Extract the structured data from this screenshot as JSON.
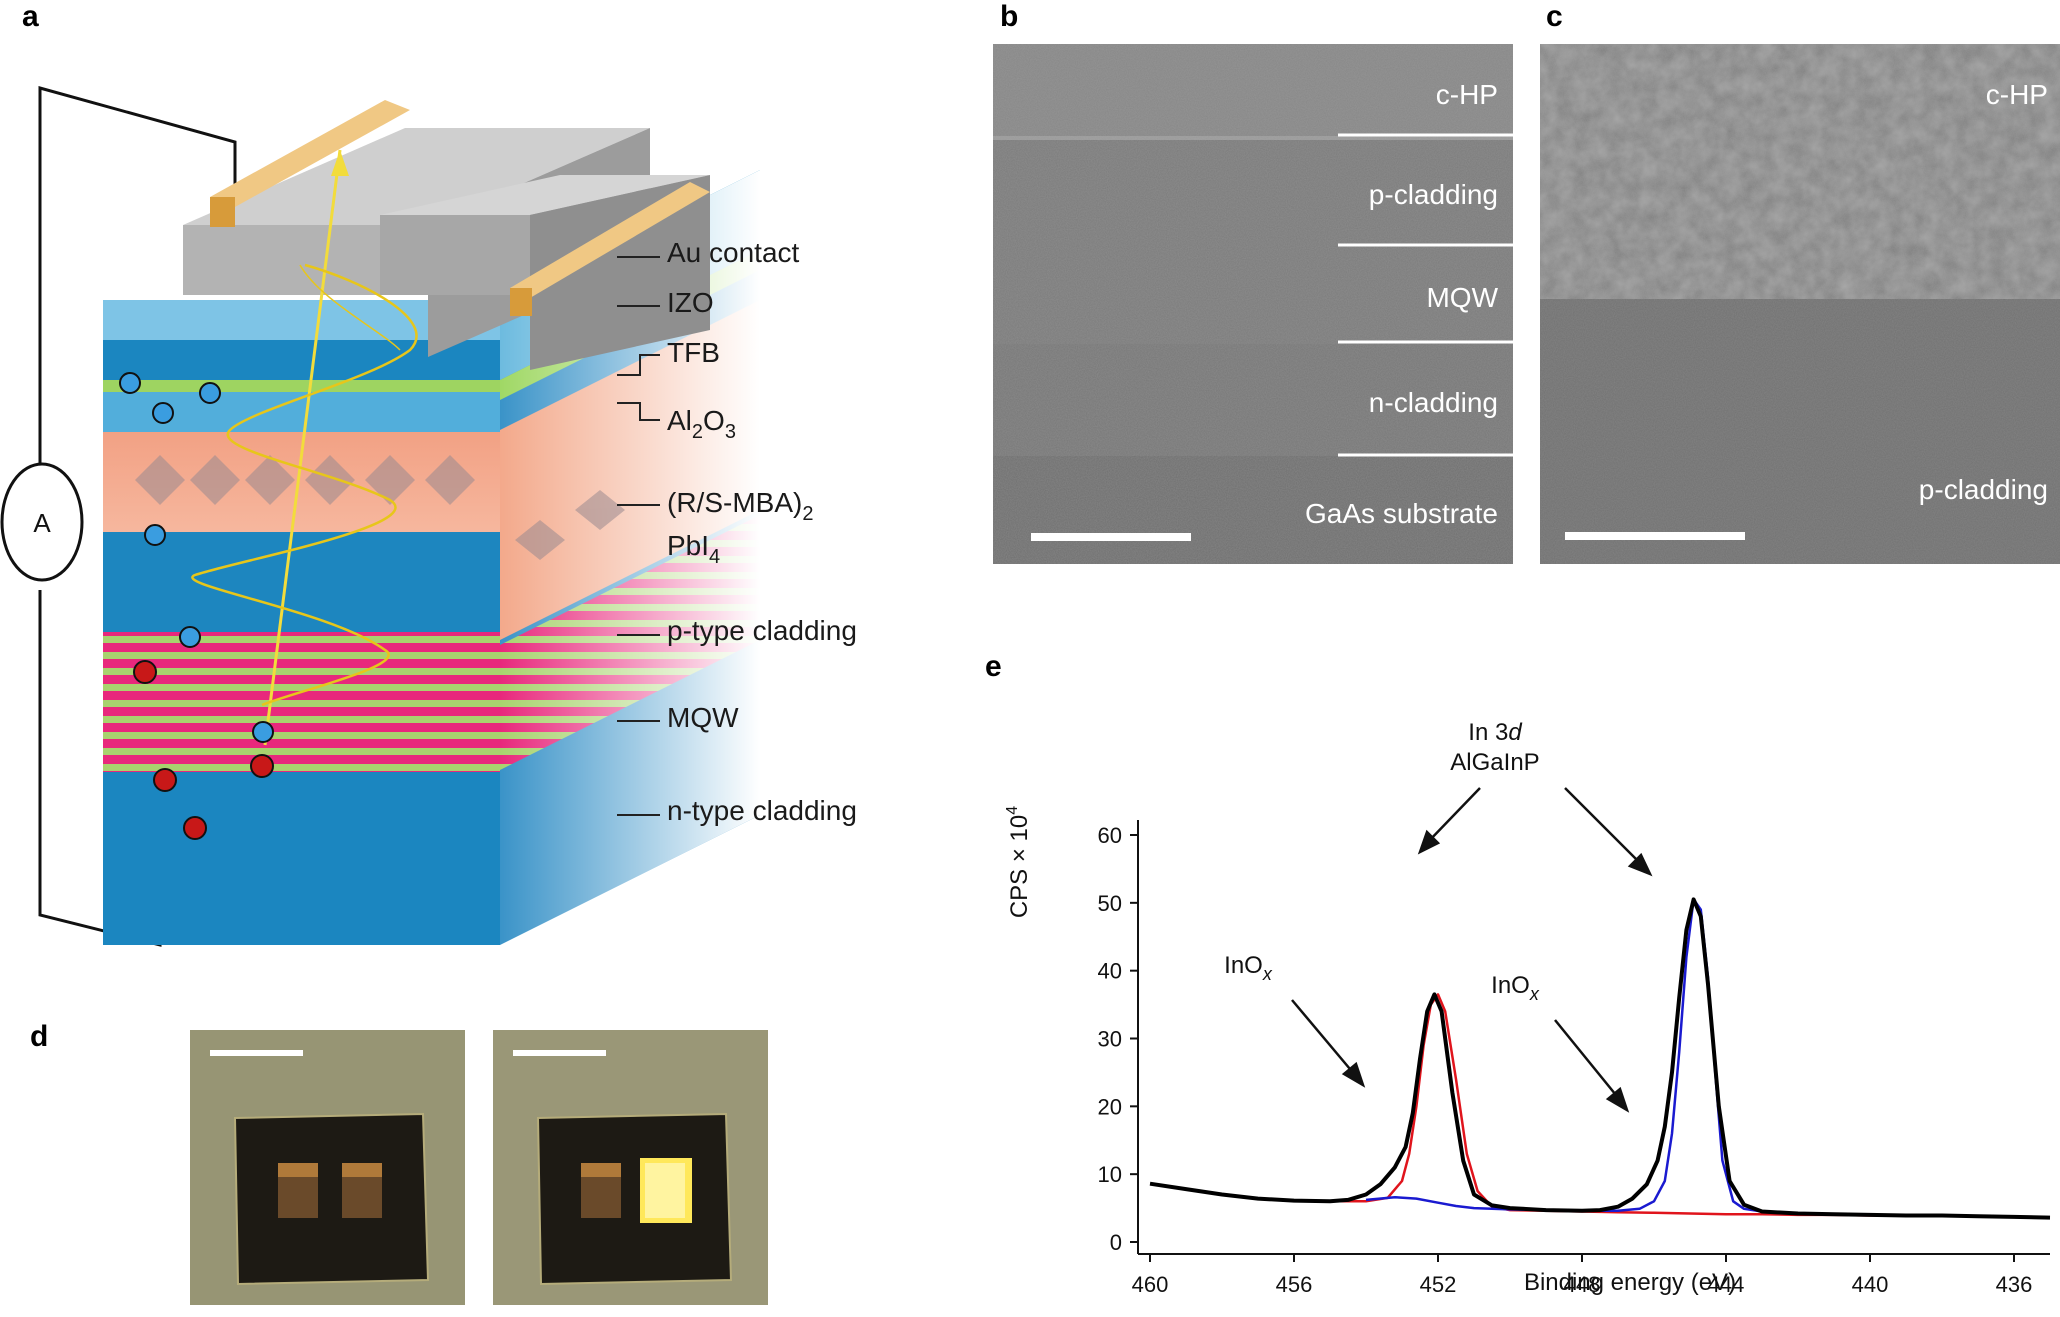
{
  "panels": {
    "a": "a",
    "b": "b",
    "c": "c",
    "d": "d",
    "e": "e"
  },
  "panel_a": {
    "ammeter": "A",
    "layers": [
      {
        "main": "Au contact"
      },
      {
        "main": "IZO"
      },
      {
        "main": "TFB"
      },
      {
        "main": "Al",
        "sub1": "2",
        "mid": "O",
        "sub2": "3"
      },
      {
        "main": "(R/S-MBA)",
        "sub1": "2"
      },
      {
        "main": "PbI",
        "sub1": "4"
      },
      {
        "main": "p-type cladding"
      },
      {
        "main": "MQW"
      },
      {
        "main": "n-type cladding"
      }
    ]
  },
  "panel_b": {
    "labels": [
      "c-HP",
      "p-cladding",
      "MQW",
      "n-cladding",
      "GaAs substrate"
    ]
  },
  "panel_c": {
    "labels": [
      "c-HP",
      "p-cladding"
    ]
  },
  "colors": {
    "red_fit": "#e0141c",
    "blue_fit": "#1a1ad0",
    "black_data": "#000000",
    "au": "#e3b157",
    "cladding": "#1b86c0"
  },
  "chart_data": {
    "type": "line",
    "title": "",
    "xlabel": "Binding energy (eV)",
    "ylabel": "CPS × 10",
    "ylabel_sup": "4",
    "xlim": [
      460,
      435
    ],
    "ylim": [
      0,
      60
    ],
    "xticks": [
      460,
      456,
      452,
      448,
      444,
      440,
      436
    ],
    "yticks": [
      0,
      10,
      20,
      30,
      40,
      50,
      60
    ],
    "annotations": {
      "in3d_line1": "In 3",
      "in3d_italic": "d",
      "in3d_line2": "AlGaInP",
      "inox_main": "InO",
      "inox_sub": "x"
    },
    "series": [
      {
        "name": "data",
        "color": "#000000",
        "x": [
          460,
          459,
          458,
          457,
          456,
          455,
          454.5,
          454,
          453.6,
          453.2,
          452.9,
          452.7,
          452.5,
          452.3,
          452.1,
          451.9,
          451.6,
          451.3,
          451,
          450.5,
          450,
          449,
          448,
          447.5,
          447,
          446.6,
          446.2,
          445.9,
          445.7,
          445.5,
          445.3,
          445.1,
          444.9,
          444.7,
          444.5,
          444.2,
          443.9,
          443.5,
          443,
          442,
          441,
          440,
          439,
          438,
          437,
          436,
          435
        ],
        "y": [
          8.6,
          7.8,
          7.0,
          6.4,
          6.1,
          6.0,
          6.2,
          7.0,
          8.5,
          11,
          14,
          19,
          27,
          34,
          36.5,
          34,
          22,
          12,
          7,
          5.4,
          5.0,
          4.7,
          4.6,
          4.7,
          5.2,
          6.4,
          8.5,
          12,
          17,
          25,
          36,
          46,
          50.5,
          48,
          38,
          20,
          9,
          5.5,
          4.5,
          4.2,
          4.1,
          4.0,
          3.9,
          3.9,
          3.8,
          3.7,
          3.6
        ]
      },
      {
        "name": "AlGaInP fit (red)",
        "color": "#e0141c",
        "x": [
          456,
          455,
          454,
          453.4,
          453,
          452.8,
          452.6,
          452.4,
          452.2,
          452,
          451.8,
          451.5,
          451.2,
          450.9,
          450.5,
          450,
          449,
          448,
          447,
          446,
          445,
          444,
          443,
          442,
          441,
          440,
          439,
          438,
          437,
          436,
          435
        ],
        "y": [
          6.0,
          6.0,
          6.0,
          6.5,
          9,
          13,
          20,
          29,
          35,
          36.5,
          34,
          24,
          13,
          7.5,
          5.2,
          4.7,
          4.6,
          4.5,
          4.4,
          4.3,
          4.2,
          4.1,
          4.1,
          4.0,
          4.0,
          3.9,
          3.9,
          3.8,
          3.8,
          3.7,
          3.6
        ]
      },
      {
        "name": "InOx fit (blue)",
        "color": "#1a1ad0",
        "x": [
          454,
          453.2,
          452.6,
          452,
          451.5,
          451,
          450,
          449,
          448,
          447,
          446.4,
          446,
          445.7,
          445.5,
          445.3,
          445.1,
          444.9,
          444.7,
          444.5,
          444.3,
          444.1,
          443.8,
          443.5,
          443,
          442,
          441
        ],
        "y": [
          6.2,
          6.6,
          6.4,
          5.8,
          5.3,
          5.0,
          4.8,
          4.7,
          4.6,
          4.6,
          4.9,
          6,
          9,
          16,
          28,
          42,
          50.5,
          49,
          39,
          25,
          12,
          6,
          4.9,
          4.5,
          4.2,
          4.1
        ]
      }
    ]
  }
}
